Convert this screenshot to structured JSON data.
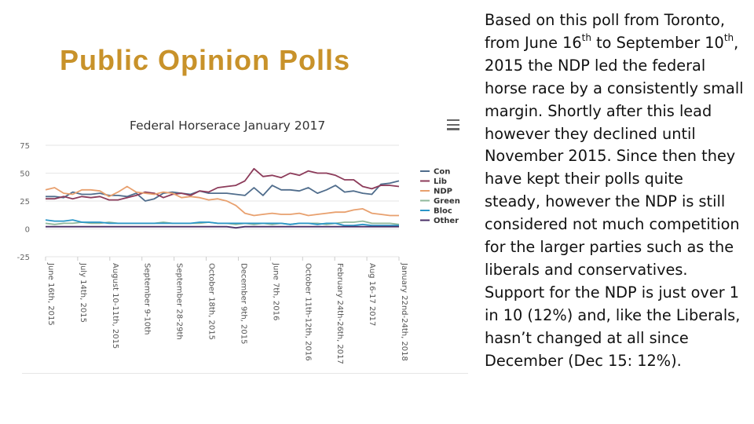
{
  "slide": {
    "title": "Public Opinion Polls"
  },
  "body_text": {
    "p1_a": "Based on this poll from Toronto, from June 16",
    "p1_sup1": "th",
    "p1_b": " to September 10",
    "p1_sup2": "th",
    "p1_c": ", 2015 the NDP led the federal horse race by a consistently small margin. Shortly after this lead however they declined until November 2015. Since then they have kept their polls quite steady, however the NDP is still considered not much competition for the larger parties such as the liberals and conservatives.",
    "p2": "Support for the NDP is just over 1 in 10 (12%) and, like the Liberals, hasn’t changed at all since December (Dec 15: 12%)."
  },
  "chart_data": {
    "type": "line",
    "title": "Federal Horserace January 2017",
    "xlabel": "",
    "ylabel": "",
    "ylim": [
      -25,
      75
    ],
    "yticks": [
      -25,
      0,
      25,
      50,
      75
    ],
    "grid": true,
    "legend_position": "right",
    "x_tick_labels": [
      "June 16th, 2015",
      "July 14th, 2015",
      "August 10-11th, 2015",
      "September 9-10th",
      "September 28-29th",
      "October 18th, 2015",
      "December 9th, 2015",
      "June 7th, 2016",
      "October 11th-12th, 2016",
      "February 24th-26th, 2017",
      "Aug 16-17 2017",
      "January 22nd-24th, 2018"
    ],
    "n_points": 40,
    "series": [
      {
        "name": "Con",
        "color": "#506d8c",
        "values": [
          29,
          29,
          28,
          33,
          31,
          31,
          32,
          30,
          30,
          29,
          32,
          25,
          27,
          32,
          33,
          32,
          31,
          34,
          32,
          32,
          32,
          31,
          30,
          37,
          30,
          39,
          35,
          35,
          34,
          37,
          32,
          35,
          39,
          33,
          34,
          32,
          31,
          40,
          41,
          43
        ]
      },
      {
        "name": "Lib",
        "color": "#8c3b5a",
        "values": [
          27,
          27,
          29,
          27,
          29,
          28,
          29,
          26,
          26,
          28,
          30,
          33,
          32,
          28,
          31,
          32,
          30,
          34,
          33,
          37,
          38,
          39,
          43,
          54,
          47,
          48,
          46,
          50,
          48,
          52,
          50,
          50,
          48,
          44,
          44,
          38,
          36,
          39,
          39,
          38
        ]
      },
      {
        "name": "NDP",
        "color": "#e8a06e",
        "values": [
          35,
          37,
          32,
          31,
          35,
          35,
          34,
          29,
          33,
          38,
          33,
          32,
          31,
          33,
          32,
          28,
          29,
          28,
          26,
          27,
          25,
          21,
          14,
          12,
          13,
          14,
          13,
          13,
          14,
          12,
          13,
          14,
          15,
          15,
          17,
          18,
          14,
          13,
          12,
          12
        ]
      },
      {
        "name": "Green",
        "color": "#8fb89b",
        "values": [
          5,
          4,
          5,
          5,
          6,
          5,
          5,
          6,
          5,
          5,
          5,
          5,
          5,
          6,
          5,
          5,
          5,
          5,
          6,
          5,
          5,
          4,
          5,
          4,
          5,
          4,
          5,
          4,
          5,
          5,
          5,
          4,
          5,
          6,
          6,
          7,
          5,
          5,
          5,
          4
        ]
      },
      {
        "name": "Bloc",
        "color": "#2a96c8",
        "values": [
          8,
          7,
          7,
          8,
          6,
          6,
          6,
          5,
          5,
          5,
          5,
          5,
          5,
          5,
          5,
          5,
          5,
          6,
          6,
          5,
          5,
          5,
          5,
          5,
          5,
          5,
          5,
          4,
          5,
          5,
          4,
          5,
          5,
          3,
          3,
          4,
          3,
          3,
          3,
          3
        ]
      },
      {
        "name": "Other",
        "color": "#4a2f66",
        "values": [
          2,
          2,
          2,
          2,
          2,
          2,
          2,
          2,
          2,
          2,
          2,
          2,
          2,
          2,
          2,
          2,
          2,
          2,
          2,
          2,
          2,
          1,
          2,
          2,
          2,
          2,
          2,
          2,
          2,
          2,
          2,
          2,
          2,
          2,
          2,
          2,
          2,
          2,
          2,
          2
        ]
      }
    ]
  }
}
